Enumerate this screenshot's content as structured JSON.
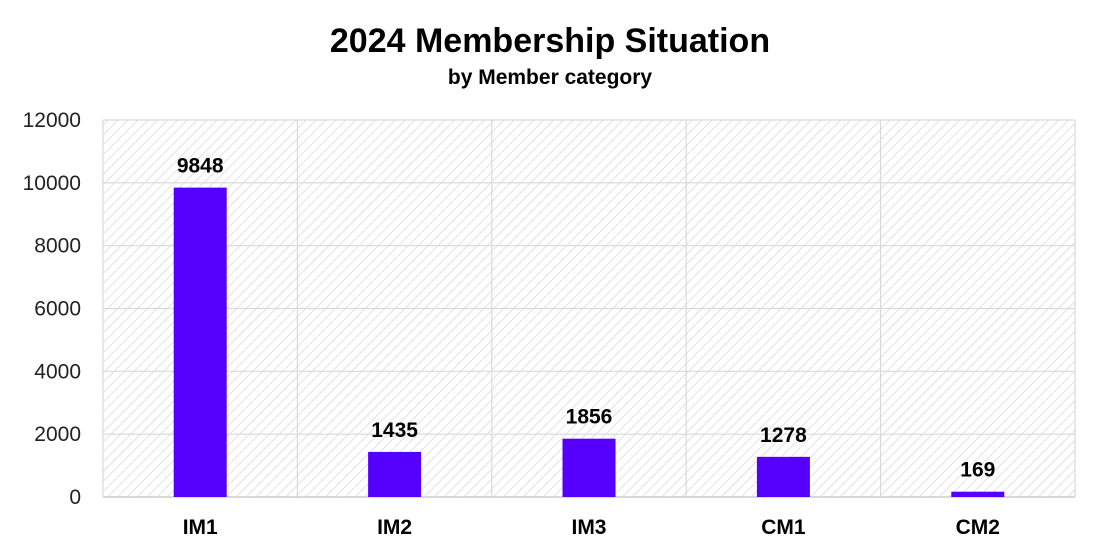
{
  "chart_data": {
    "type": "bar",
    "title": "2024 Membership Situation",
    "subtitle": "by Member category",
    "categories": [
      "IM1",
      "IM2",
      "IM3",
      "CM1",
      "CM2"
    ],
    "values": [
      9848,
      1435,
      1856,
      1278,
      169
    ],
    "data_labels": [
      "9848",
      "1435",
      "1856",
      "1278",
      "169"
    ],
    "ylim": [
      0,
      12000
    ],
    "yticks": [
      0,
      2000,
      4000,
      6000,
      8000,
      10000,
      12000
    ],
    "ytick_labels": [
      "0",
      "2000",
      "4000",
      "6000",
      "8000",
      "10000",
      "12000"
    ],
    "bar_color": "#5500ff",
    "grid": true,
    "plot_background": "diagonal-hatch",
    "legend": "none"
  }
}
